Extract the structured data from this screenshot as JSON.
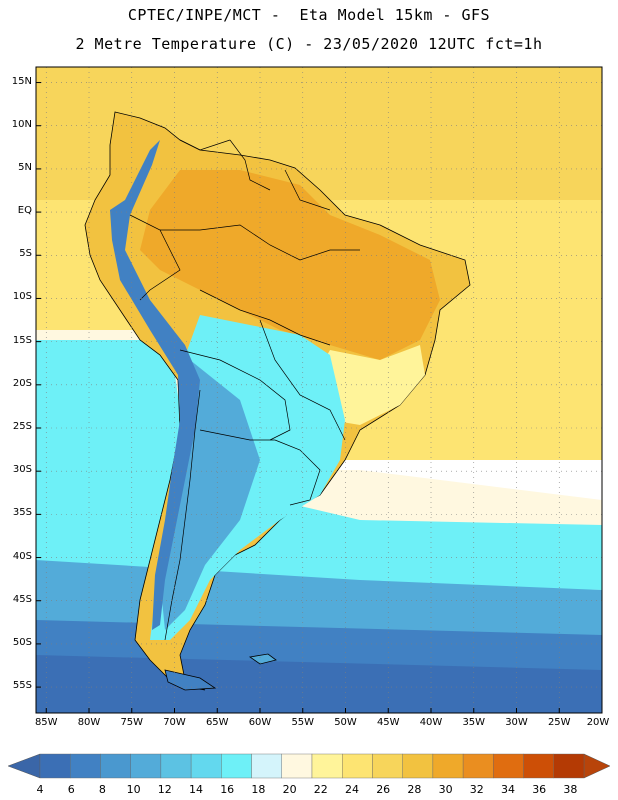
{
  "title_line1": "CPTEC/INPE/MCT -  Eta Model 15km - GFS",
  "title_line2": "2 Metre Temperature (C) - 23/05/2020 12UTC fct=1h",
  "lat_labels": [
    "15N",
    "10N",
    "5N",
    "EQ",
    "5S",
    "10S",
    "15S",
    "20S",
    "25S",
    "30S",
    "35S",
    "40S",
    "45S",
    "50S",
    "55S"
  ],
  "lon_labels": [
    "85W",
    "80W",
    "75W",
    "70W",
    "65W",
    "60W",
    "55W",
    "50W",
    "45W",
    "40W",
    "35W",
    "30W",
    "25W",
    "20W"
  ],
  "colorbar": {
    "ticks": [
      "4",
      "6",
      "8",
      "10",
      "12",
      "14",
      "16",
      "18",
      "20",
      "22",
      "24",
      "26",
      "28",
      "30",
      "32",
      "34",
      "36",
      "38"
    ],
    "colors": [
      "#3b6fb5",
      "#4181c3",
      "#4a98cf",
      "#53abd9",
      "#5cc2e3",
      "#63d8ee",
      "#6ef0f7",
      "#d4f4fb",
      "#fff8e0",
      "#fff49a",
      "#fde472",
      "#f7d55b",
      "#f2c240",
      "#efa92a",
      "#ea8e20",
      "#e06d10",
      "#cd4f06",
      "#b43a04"
    ],
    "low_color": "#3a66a8",
    "high_color": "#b8440a"
  },
  "map_colors": {
    "ocean_north": "#f7d55b",
    "ocean_mid": "#fde472",
    "ocean_pale": "#fff8e0",
    "ocean_cool": "#6ef0f7",
    "ocean_cold": "#53abd9",
    "ocean_colder": "#4181c3",
    "ocean_coldest": "#3b6fb5",
    "land_hot": "#efa92a",
    "land_warm": "#f2c240",
    "land_mild": "#fff49a",
    "land_cool": "#6ef0f7",
    "land_cold": "#53abd9",
    "andes": "#4181c3"
  }
}
